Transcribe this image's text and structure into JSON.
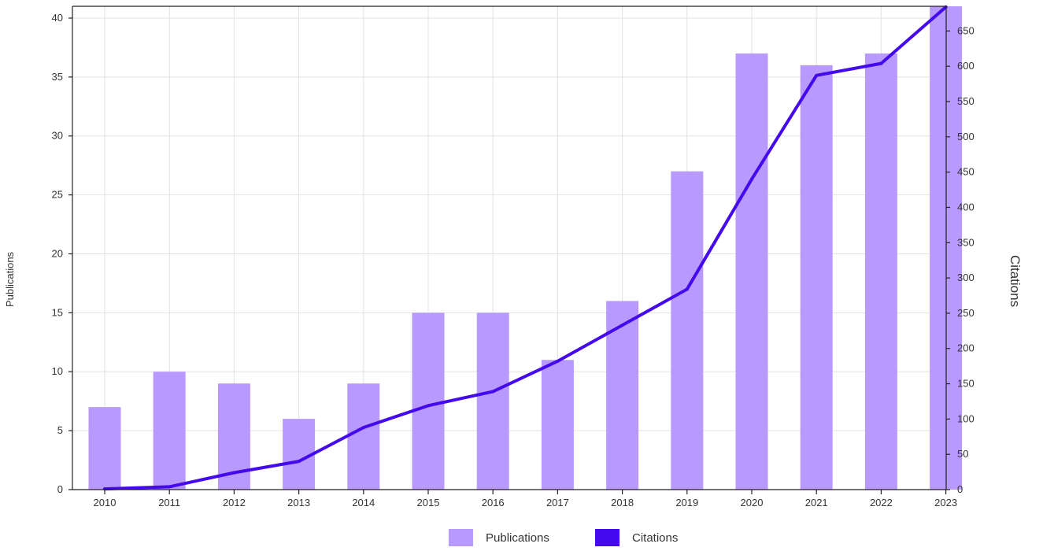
{
  "chart_data": {
    "type": "bar",
    "categories": [
      "2010",
      "2011",
      "2012",
      "2013",
      "2014",
      "2015",
      "2016",
      "2017",
      "2018",
      "2019",
      "2020",
      "2021",
      "2022",
      "2023"
    ],
    "series": [
      {
        "name": "Publications",
        "type": "bar",
        "axis": "left",
        "values": [
          7,
          10,
          9,
          6,
          9,
          15,
          15,
          11,
          16,
          27,
          37,
          36,
          37,
          41
        ]
      },
      {
        "name": "Citations",
        "type": "line",
        "axis": "right",
        "values": [
          1,
          4,
          24,
          40,
          88,
          119,
          139,
          182,
          233,
          284,
          440,
          587,
          604,
          684
        ]
      }
    ],
    "ylabel": "Publications",
    "y2label": "Citations",
    "ylim": [
      0,
      41
    ],
    "y2lim": [
      0,
      685
    ],
    "yticks": [
      "0",
      "5",
      "10",
      "15",
      "20",
      "25",
      "30",
      "35",
      "40"
    ],
    "y2ticks": [
      "0",
      "50",
      "100",
      "150",
      "200",
      "250",
      "300",
      "350",
      "400",
      "450",
      "500",
      "550",
      "600",
      "650"
    ],
    "grid": true,
    "legend_position": "bottom-center",
    "colors": {
      "Publications": "#b899fd",
      "Citations": "#4409ec",
      "grid": "#e2e2e2",
      "axis": "#222222"
    }
  }
}
